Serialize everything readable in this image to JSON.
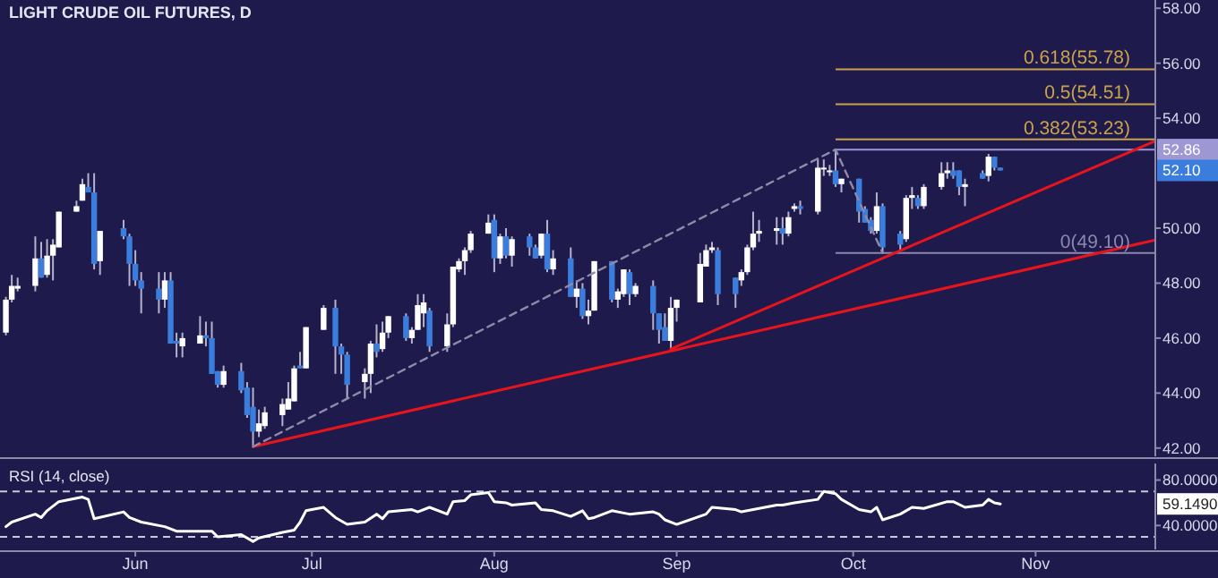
{
  "chart_data": [
    {
      "type": "candlestick",
      "title": "LIGHT CRUDE OIL FUTURES, D",
      "x": [
        "--05-10",
        "--05-11",
        "--05-12",
        "--05-15",
        "--05-16",
        "--05-17",
        "--05-18",
        "--05-19",
        "--05-22",
        "--05-23",
        "--05-24",
        "--05-25",
        "--05-26",
        "--05-30",
        "--05-31",
        "--06-01",
        "--06-02",
        "--06-05",
        "--06-06",
        "--06-07",
        "--06-08",
        "--06-09",
        "--06-12",
        "--06-13",
        "--06-14",
        "--06-15",
        "--06-16",
        "--06-19",
        "--06-20",
        "--06-21",
        "--06-22",
        "--06-23",
        "--06-26",
        "--06-27",
        "--06-28",
        "--06-29",
        "--06-30",
        "--07-03",
        "--07-05",
        "--07-06",
        "--07-07",
        "--07-10",
        "--07-11",
        "--07-12",
        "--07-13",
        "--07-14",
        "--07-17",
        "--07-18",
        "--07-19",
        "--07-20",
        "--07-21",
        "--07-24",
        "--07-25",
        "--07-26",
        "--07-27",
        "--07-28",
        "--07-31",
        "--08-01",
        "--08-02",
        "--08-03",
        "--08-04",
        "--08-07",
        "--08-08",
        "--08-09",
        "--08-10",
        "--08-11",
        "--08-14",
        "--08-15",
        "--08-16",
        "--08-17",
        "--08-18",
        "--08-21",
        "--08-22",
        "--08-23",
        "--08-24",
        "--08-25",
        "--08-28",
        "--08-29",
        "--08-30",
        "--08-31",
        "--09-01",
        "--09-05",
        "--09-06",
        "--09-07",
        "--09-08",
        "--09-11",
        "--09-12",
        "--09-13",
        "--09-14",
        "--09-15",
        "--09-18",
        "--09-19",
        "--09-20",
        "--09-21",
        "--09-22",
        "--09-25",
        "--09-26",
        "--09-27",
        "--09-28",
        "--09-29",
        "--10-02",
        "--10-03",
        "--10-04",
        "--10-05",
        "--10-06",
        "--10-09",
        "--10-10",
        "--10-11",
        "--10-12",
        "--10-13",
        "--10-16",
        "--10-17",
        "--10-18",
        "--10-19",
        "--10-20",
        "--10-23",
        "--10-24",
        "--10-25",
        "--10-26"
      ],
      "ohlc": [
        [
          46.2,
          47.5,
          46.1,
          47.4
        ],
        [
          47.4,
          48.3,
          47.3,
          47.9
        ],
        [
          47.8,
          48.2,
          47.7,
          47.9
        ],
        [
          47.9,
          49.7,
          47.7,
          48.9
        ],
        [
          48.9,
          49.5,
          48.2,
          48.2
        ],
        [
          48.3,
          49.6,
          48.2,
          49.0
        ],
        [
          49.0,
          49.6,
          48.1,
          49.4
        ],
        [
          49.3,
          50.6,
          49.3,
          50.6
        ],
        [
          50.6,
          51.0,
          50.6,
          50.8
        ],
        [
          51.0,
          51.8,
          51.0,
          51.6
        ],
        [
          51.5,
          52.0,
          51.3,
          51.3
        ],
        [
          51.3,
          52.0,
          48.5,
          48.7
        ],
        [
          48.8,
          49.9,
          48.3,
          49.9
        ],
        [
          50.0,
          50.3,
          49.6,
          49.7
        ],
        [
          49.7,
          49.8,
          47.9,
          48.7
        ],
        [
          48.7,
          49.2,
          47.9,
          48.1
        ],
        [
          48.1,
          48.4,
          46.9,
          47.8
        ],
        [
          47.8,
          48.4,
          46.9,
          47.4
        ],
        [
          47.4,
          48.4,
          47.1,
          48.1
        ],
        [
          48.1,
          48.4,
          45.8,
          45.8
        ],
        [
          45.9,
          46.2,
          45.3,
          45.8
        ],
        [
          45.7,
          46.2,
          45.3,
          46.0
        ],
        [
          45.8,
          46.8,
          45.8,
          46.1
        ],
        [
          46.1,
          46.6,
          45.7,
          46.0
        ],
        [
          46.0,
          46.6,
          44.7,
          44.7
        ],
        [
          44.8,
          44.8,
          44.2,
          44.3
        ],
        [
          44.3,
          45.0,
          44.2,
          44.8
        ],
        [
          44.8,
          45.1,
          44.0,
          44.1
        ],
        [
          44.2,
          44.4,
          43.1,
          43.2
        ],
        [
          43.5,
          44.2,
          42.05,
          42.6
        ],
        [
          42.6,
          43.4,
          42.4,
          42.9
        ],
        [
          42.8,
          43.5,
          42.7,
          43.3
        ],
        [
          43.2,
          43.8,
          42.8,
          43.6
        ],
        [
          43.4,
          44.4,
          43.4,
          43.8
        ],
        [
          43.7,
          45.0,
          43.7,
          44.9
        ],
        [
          45.0,
          45.5,
          44.9,
          44.9
        ],
        [
          44.9,
          46.4,
          44.9,
          46.4
        ],
        [
          46.3,
          47.2,
          46.3,
          47.1
        ],
        [
          47.1,
          47.4,
          44.7,
          45.7
        ],
        [
          45.7,
          45.8,
          44.7,
          45.4
        ],
        [
          45.4,
          45.5,
          43.8,
          44.3
        ],
        [
          44.4,
          44.9,
          43.8,
          44.7
        ],
        [
          44.7,
          45.9,
          44.0,
          45.8
        ],
        [
          45.8,
          46.5,
          45.3,
          45.5
        ],
        [
          45.6,
          46.6,
          45.5,
          46.2
        ],
        [
          46.2,
          46.8,
          46.0,
          46.8
        ],
        [
          46.8,
          46.9,
          45.9,
          46.0
        ],
        [
          46.0,
          46.4,
          45.8,
          46.3
        ],
        [
          46.3,
          47.6,
          46.3,
          47.2
        ],
        [
          46.9,
          47.6,
          46.4,
          47.3
        ],
        [
          47.0,
          47.1,
          45.5,
          45.7
        ],
        [
          45.7,
          46.9,
          45.5,
          46.5
        ],
        [
          46.5,
          48.6,
          46.4,
          48.6
        ],
        [
          48.5,
          48.9,
          48.4,
          48.8
        ],
        [
          48.8,
          49.3,
          48.3,
          49.2
        ],
        [
          49.2,
          49.9,
          49.1,
          49.8
        ],
        [
          49.8,
          50.5,
          49.8,
          50.2
        ],
        [
          50.3,
          50.5,
          48.4,
          48.9
        ],
        [
          48.9,
          49.8,
          48.7,
          49.7
        ],
        [
          49.7,
          50.0,
          48.9,
          49.0
        ],
        [
          49.0,
          49.7,
          48.6,
          49.6
        ],
        [
          49.7,
          49.8,
          49.0,
          49.3
        ],
        [
          49.3,
          49.4,
          48.9,
          48.9
        ],
        [
          49.0,
          49.8,
          48.9,
          49.8
        ],
        [
          49.8,
          50.3,
          48.4,
          48.5
        ],
        [
          48.5,
          49.2,
          48.3,
          48.9
        ],
        [
          48.9,
          49.3,
          47.5,
          47.5
        ],
        [
          47.5,
          48.1,
          47.1,
          47.8
        ],
        [
          47.8,
          48.0,
          46.7,
          46.8
        ],
        [
          46.8,
          47.4,
          46.5,
          47.0
        ],
        [
          47.0,
          48.8,
          47.0,
          48.8
        ],
        [
          48.8,
          48.8,
          47.3,
          47.4
        ],
        [
          47.4,
          47.8,
          47.1,
          47.7
        ],
        [
          47.6,
          48.5,
          47.5,
          48.5
        ],
        [
          48.4,
          48.5,
          47.2,
          47.6
        ],
        [
          47.6,
          48.0,
          47.5,
          47.9
        ],
        [
          47.9,
          48.1,
          46.3,
          46.9
        ],
        [
          46.9,
          46.9,
          45.8,
          46.3
        ],
        [
          46.4,
          46.9,
          45.9,
          45.9
        ],
        [
          45.9,
          47.5,
          45.6,
          47.1
        ],
        [
          47.1,
          47.4,
          46.6,
          47.4
        ],
        [
          47.3,
          49.1,
          47.3,
          48.7
        ],
        [
          48.6,
          49.4,
          48.6,
          49.2
        ],
        [
          49.2,
          49.5,
          49.1,
          49.3
        ],
        [
          49.2,
          49.3,
          47.2,
          47.6
        ],
        [
          48.2,
          48.2,
          47.1,
          47.6
        ],
        [
          48.1,
          48.5,
          47.9,
          48.4
        ],
        [
          48.4,
          49.4,
          48.3,
          49.3
        ],
        [
          49.3,
          50.6,
          49.2,
          49.8
        ],
        [
          49.8,
          50.3,
          49.5,
          49.9
        ],
        [
          49.9,
          50.4,
          49.4,
          50.0
        ],
        [
          50.0,
          50.4,
          49.4,
          49.8
        ],
        [
          49.8,
          50.6,
          49.7,
          50.4
        ],
        [
          50.7,
          50.9,
          50.6,
          50.8
        ],
        [
          50.8,
          51.0,
          50.5,
          50.7
        ],
        [
          50.6,
          52.5,
          50.5,
          52.2
        ],
        [
          52.2,
          52.5,
          51.9,
          52.2
        ],
        [
          52.1,
          52.3,
          51.9,
          52.1
        ],
        [
          52.1,
          52.86,
          51.5,
          51.6
        ],
        [
          51.6,
          51.8,
          51.3,
          51.8
        ],
        [
          51.8,
          51.8,
          50.2,
          50.6
        ],
        [
          50.7,
          50.8,
          50.2,
          50.2
        ],
        [
          50.3,
          50.4,
          49.8,
          49.9
        ],
        [
          49.9,
          51.3,
          49.8,
          50.8
        ],
        [
          50.8,
          50.9,
          49.1,
          49.3
        ],
        [
          49.8,
          49.9,
          49.2,
          49.4
        ],
        [
          49.6,
          51.2,
          49.5,
          51.1
        ],
        [
          51.1,
          51.5,
          50.7,
          51.2
        ],
        [
          51.1,
          51.2,
          50.7,
          50.8
        ],
        [
          50.8,
          51.6,
          50.7,
          51.5
        ],
        [
          51.5,
          52.4,
          51.4,
          52.0
        ],
        [
          52.0,
          52.4,
          51.8,
          52.1
        ],
        [
          52.1,
          52.4,
          51.8,
          51.9
        ],
        [
          52.1,
          52.1,
          51.2,
          51.5
        ],
        [
          51.5,
          51.8,
          50.8,
          51.6
        ],
        [
          52.0,
          52.1,
          51.8,
          51.8
        ],
        [
          51.9,
          52.7,
          51.7,
          52.6
        ],
        [
          52.6,
          52.6,
          52.1,
          52.2
        ],
        [
          52.2,
          52.2,
          52.1,
          52.1
        ]
      ],
      "series": [
        {
          "type": "line",
          "x": [
            "--06-21",
            "--11-22"
          ],
          "values": [
            42.05,
            49.6
          ],
          "color": "#e8141c"
        },
        {
          "type": "line",
          "x": [
            "--08-31",
            "--11-22"
          ],
          "values": [
            45.6,
            53.23
          ],
          "color": "#e8141c"
        },
        {
          "type": "line",
          "x": [
            "--06-21",
            "--09-28",
            "--10-06"
          ],
          "values": [
            42.05,
            52.86,
            49.1
          ],
          "color": "#8e8aa8",
          "line_style": "dashed"
        }
      ],
      "ref_lines": [
        {
          "axis": "y",
          "value": 55.78,
          "label": "0.618(55.78)",
          "color": "#c9a24a"
        },
        {
          "axis": "y",
          "value": 54.51,
          "label": "0.5(54.51)",
          "color": "#c9a24a"
        },
        {
          "axis": "y",
          "value": 53.23,
          "label": "0.382(53.23)",
          "color": "#c9a24a"
        },
        {
          "axis": "y",
          "value": 52.86,
          "label": null,
          "color": "#9d97d4"
        },
        {
          "axis": "y",
          "value": 49.1,
          "label": "0(49.10)",
          "color": "#8c88ad"
        }
      ],
      "annotations": [
        "52.86",
        "52.10"
      ],
      "xlim": [
        "--05-09",
        "--12-02"
      ],
      "ylim": [
        41.7,
        58.3
      ],
      "yticks": [
        {
          "value": 42,
          "label": "42.00"
        },
        {
          "value": 44,
          "label": "44.00"
        },
        {
          "value": 46,
          "label": "46.00"
        },
        {
          "value": 48,
          "label": "48.00"
        },
        {
          "value": 50,
          "label": "50.00"
        },
        {
          "value": 54,
          "label": "54.00"
        },
        {
          "value": 56,
          "label": "56.00"
        },
        {
          "value": 58,
          "label": "58.00"
        }
      ],
      "tick_labels": "y"
    },
    {
      "type": "line",
      "title": "RSI (14, close)",
      "color": "#ffffff",
      "x": [
        "--05-10",
        "--05-11",
        "--05-15",
        "--05-16",
        "--05-17",
        "--05-19",
        "--05-23",
        "--05-24",
        "--05-25",
        "--05-30",
        "--05-31",
        "--06-02",
        "--06-06",
        "--06-08",
        "--06-09",
        "--06-14",
        "--06-15",
        "--06-19",
        "--06-21",
        "--06-22",
        "--06-26",
        "--06-28",
        "--06-29",
        "--06-30",
        "--07-03",
        "--07-05",
        "--07-07",
        "--07-10",
        "--07-12",
        "--07-13",
        "--07-14",
        "--07-18",
        "--07-19",
        "--07-21",
        "--07-24",
        "--07-25",
        "--07-27",
        "--07-28",
        "--07-31",
        "--08-01",
        "--08-03",
        "--08-04",
        "--08-08",
        "--08-09",
        "--08-11",
        "--08-14",
        "--08-16",
        "--08-17",
        "--08-18",
        "--08-21",
        "--08-23",
        "--08-24",
        "--08-28",
        "--08-29",
        "--08-30",
        "--09-01",
        "--09-06",
        "--09-07",
        "--09-11",
        "--09-12",
        "--09-14",
        "--09-18",
        "--09-19",
        "--09-21",
        "--09-25",
        "--09-26",
        "--09-28",
        "--09-29",
        "--10-02",
        "--10-04",
        "--10-05",
        "--10-06",
        "--10-09",
        "--10-11",
        "--10-13",
        "--10-17",
        "--10-18",
        "--10-20",
        "--10-23",
        "--10-24",
        "--10-25",
        "--10-26"
      ],
      "values": [
        39,
        43,
        50,
        47,
        53,
        61,
        65,
        63,
        46,
        52,
        47,
        43,
        39,
        35,
        35,
        35,
        30,
        32,
        26,
        29,
        34,
        36,
        43,
        53,
        56,
        47,
        41,
        43,
        50,
        46,
        52,
        54,
        52,
        56,
        50,
        61,
        62,
        67,
        69,
        61,
        60,
        58,
        60,
        54,
        53,
        48,
        53,
        46,
        47,
        53,
        51,
        50,
        52,
        50,
        45,
        41,
        50,
        56,
        54,
        52,
        54,
        58,
        58,
        60,
        63,
        70,
        68,
        63,
        54,
        52,
        56,
        45,
        50,
        56,
        55,
        61,
        61,
        56,
        58,
        63,
        60,
        59
      ],
      "ref_lines": [
        {
          "axis": "y",
          "value": 70,
          "label": null,
          "color": "#c8c8d8",
          "line_style": "dashed"
        },
        {
          "axis": "y",
          "value": 30,
          "label": null,
          "color": "#c8c8d8",
          "line_style": "dashed"
        }
      ],
      "annotations": [
        "59.1490"
      ],
      "xlim": [
        "--05-09",
        "--12-02"
      ],
      "ylim": [
        19,
        94.6
      ],
      "yticks": [
        {
          "value": 80,
          "label": "80.0000"
        },
        {
          "value": 40,
          "label": "40.0000"
        }
      ],
      "xticks": [
        {
          "value": "--06-01",
          "label": "Jun"
        },
        {
          "value": "--07-01",
          "label": "Jul"
        },
        {
          "value": "--08-01",
          "label": "Aug"
        },
        {
          "value": "--09-01",
          "label": "Sep"
        },
        {
          "value": "--10-01",
          "label": "Oct"
        },
        {
          "value": "--11-01",
          "label": "Nov"
        }
      ]
    }
  ]
}
